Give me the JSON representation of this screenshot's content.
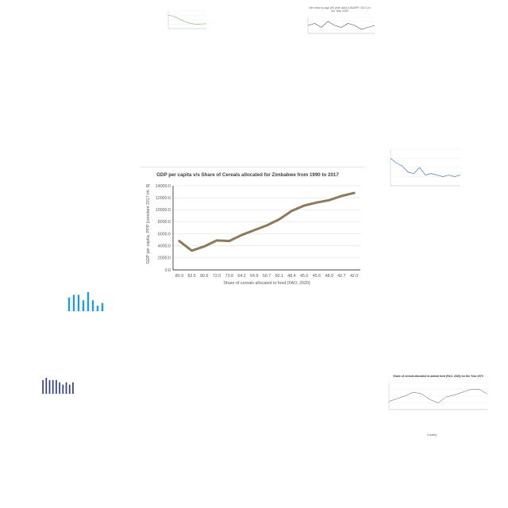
{
  "colors": {
    "main_line": "#8c7a5b",
    "grid": "#d9d9d9",
    "axis_text": "#595959",
    "thumb_green": "#8fc57a",
    "thumb_gray": "#555555",
    "thumb_blue": "#4472c4",
    "thumb_lightblue": "#1f9bde",
    "thumb_navy": "#2e3a8c"
  },
  "chart_data": [
    {
      "type": "line",
      "title": "GDP per capita v/s Share of Cereals allocated for Zimbabwe from 1990 to 2017",
      "xlabel": "Share of cereals allocated to food (FAO, 2020)",
      "ylabel": "GDP per capita, PPP (constant 2017 int. $)",
      "ylim": [
        0,
        14000
      ],
      "yticks": [
        "0.0",
        "2000.0",
        "4000.0",
        "6000.0",
        "8000.0",
        "10000.0",
        "12000.0",
        "14000.0"
      ],
      "categories": [
        "80.9",
        "82.5",
        "80.6",
        "72.0",
        "73.0",
        "64.2",
        "64.9",
        "50.7",
        "50.1",
        "48.4",
        "45.0",
        "45.6",
        "48.9",
        "42.7",
        "42.0"
      ],
      "values": [
        4800,
        3200,
        3900,
        4900,
        4800,
        5800,
        6600,
        7400,
        8400,
        9800,
        10700,
        11200,
        11600,
        12300,
        12800
      ],
      "grid": true
    },
    {
      "type": "line",
      "title": "",
      "values": [
        9.2,
        9.0,
        8.4,
        7.6,
        6.9,
        6.4,
        6.1,
        6.0,
        6.1,
        6.2
      ]
    },
    {
      "type": "line",
      "title": "Net ntms by age (50 year olds) (UNWPP, 2017) in the Year 2000",
      "xlabel": "Countries",
      "values": [
        7.1,
        7.2,
        7.0,
        7.3,
        7.1,
        7.0,
        7.2,
        7.1,
        6.9,
        7.0,
        7.1
      ]
    },
    {
      "type": "line",
      "title": "",
      "values": [
        9.6,
        9.3,
        9.1,
        8.7,
        8.6,
        9.0,
        8.5,
        8.6,
        8.5,
        8.4,
        8.5,
        8.4,
        8.5
      ]
    },
    {
      "type": "bar",
      "title": "",
      "values": [
        5,
        6,
        6,
        4,
        7,
        4,
        2,
        3
      ]
    },
    {
      "type": "bar",
      "title": "",
      "values": [
        6,
        7,
        6,
        6,
        6,
        5,
        4,
        5,
        4,
        5
      ]
    },
    {
      "type": "line",
      "title": "Share of cereals allocated to animal feed (FAO, 2020) for the Year 1970",
      "xlabel": "Country",
      "values": [
        5.0,
        5.6,
        6.2,
        7.0,
        6.6,
        5.4,
        4.7,
        6.0,
        6.4,
        7.0,
        7.6,
        7.6,
        6.6
      ]
    }
  ]
}
